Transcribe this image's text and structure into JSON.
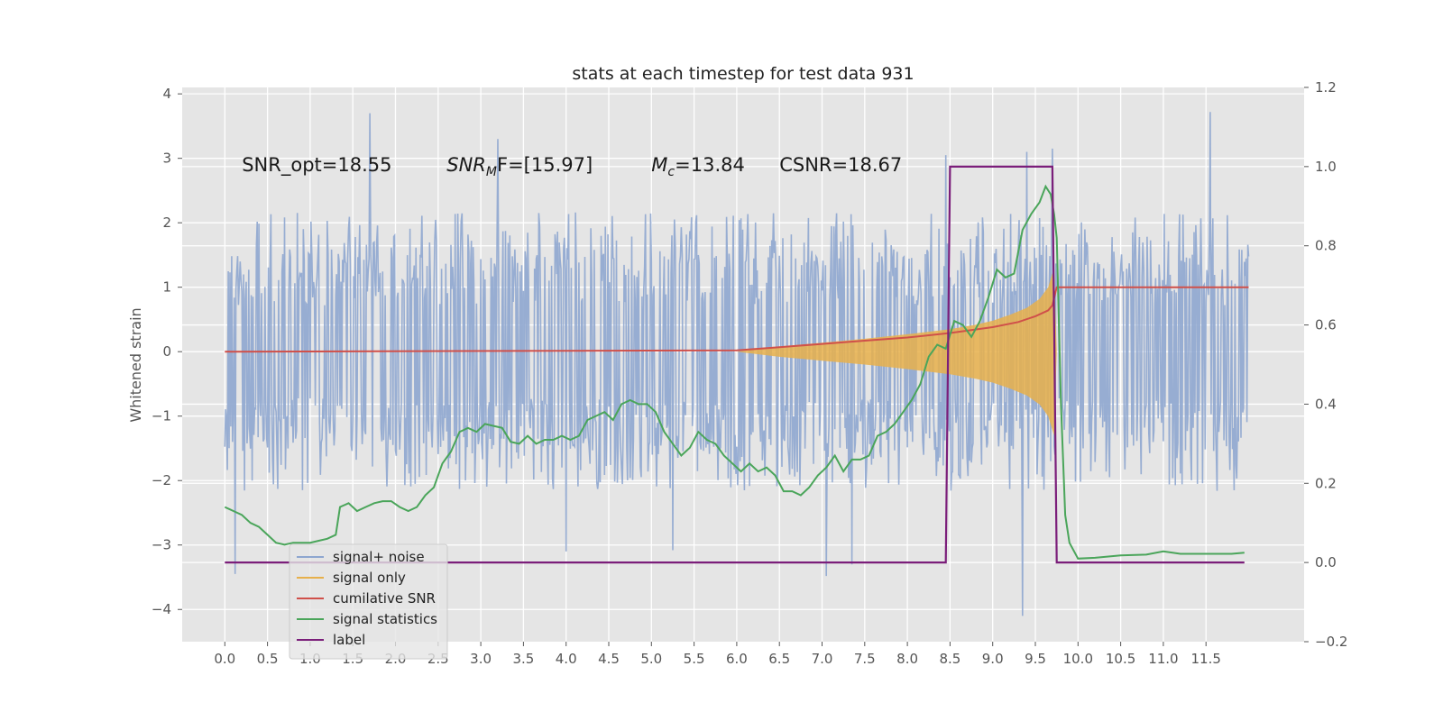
{
  "chart_data": {
    "type": "line",
    "title": "stats at each timestep for test data 931",
    "ylabel": "Whitened strain",
    "y2label": "",
    "xlim": [
      -0.5,
      12.65
    ],
    "ylim": [
      -4.5,
      4.1
    ],
    "y2lim": [
      -0.2,
      1.2
    ],
    "x_ticks": [
      0.0,
      0.5,
      1.0,
      1.5,
      2.0,
      2.5,
      3.0,
      3.5,
      4.0,
      4.5,
      5.0,
      5.5,
      6.0,
      6.5,
      7.0,
      7.5,
      8.0,
      8.5,
      9.0,
      9.5,
      10.0,
      10.5,
      11.0,
      11.5
    ],
    "x_tick_labels": [
      "0.0",
      "0.5",
      "1.0",
      "1.5",
      "2.0",
      "2.5",
      "3.0",
      "3.5",
      "4.0",
      "4.5",
      "5.0",
      "5.5",
      "6.0",
      "6.5",
      "7.0",
      "7.5",
      "8.0",
      "8.5",
      "9.0",
      "9.5",
      "10.0",
      "10.5",
      "11.0",
      "11.5"
    ],
    "y_ticks": [
      4,
      3,
      2,
      1,
      0,
      -1,
      -2,
      -3,
      -4
    ],
    "y_tick_labels": [
      "4",
      "3",
      "2",
      "1",
      "0",
      "−1",
      "−2",
      "−3",
      "−4"
    ],
    "y2_ticks": [
      1.2,
      1.0,
      0.8,
      0.6,
      0.4,
      0.2,
      0.0,
      -0.2
    ],
    "y2_tick_labels": [
      "1.2",
      "1.0",
      "0.8",
      "0.6",
      "0.4",
      "0.2",
      "0.0",
      "−0.2"
    ],
    "grid": true,
    "legend_position": "lower-left",
    "annotations": [
      {
        "text": "SNR_opt=18.55",
        "x": 0.2,
        "y": 2.9
      },
      {
        "text": "SNR_MF=[15.97]",
        "x": 2.6,
        "y": 2.9,
        "math_main": "SNR",
        "math_sub": "M",
        "math_rest": "F=[15.97]"
      },
      {
        "text": "M_c=13.84",
        "x": 5.0,
        "y": 2.9,
        "math_main": "M",
        "math_sub": "c",
        "math_rest": "=13.84"
      },
      {
        "text": "CSNR=18.67",
        "x": 6.5,
        "y": 2.9
      }
    ],
    "series": [
      {
        "name": "signal+ noise",
        "color": "#8ea6cf",
        "axis": "left",
        "style": "noise",
        "x_range": [
          0.0,
          12.0
        ],
        "typical_range": [
          -1.6,
          1.6
        ],
        "peaks": [
          {
            "x": 1.7,
            "y": 3.7
          },
          {
            "x": 11.55,
            "y": 3.72
          },
          {
            "x": 9.7,
            "y": 3.15
          },
          {
            "x": 9.4,
            "y": 3.1
          },
          {
            "x": 8.45,
            "y": 3.05
          },
          {
            "x": 3.2,
            "y": 3.3
          },
          {
            "x": 0.12,
            "y": -3.45
          },
          {
            "x": 9.35,
            "y": -4.1
          },
          {
            "x": 7.05,
            "y": -3.48
          },
          {
            "x": 7.35,
            "y": -3.3
          },
          {
            "x": 4.0,
            "y": -3.1
          },
          {
            "x": 5.25,
            "y": -3.08
          }
        ]
      },
      {
        "name": "signal only",
        "color": "#e7b04b",
        "axis": "left",
        "style": "envelope",
        "x": [
          6.0,
          6.5,
          7.0,
          7.5,
          8.0,
          8.5,
          8.8,
          9.0,
          9.2,
          9.4,
          9.55,
          9.65,
          9.72,
          9.75
        ],
        "upper": [
          0.0,
          0.08,
          0.14,
          0.2,
          0.27,
          0.35,
          0.42,
          0.48,
          0.57,
          0.68,
          0.82,
          1.0,
          1.3,
          0.0
        ],
        "lower": [
          0.0,
          -0.08,
          -0.14,
          -0.2,
          -0.27,
          -0.35,
          -0.42,
          -0.48,
          -0.57,
          -0.68,
          -0.82,
          -1.0,
          -1.3,
          0.0
        ]
      },
      {
        "name": "cumilative SNR",
        "color": "#d0504a",
        "axis": "left",
        "x": [
          0.0,
          6.0,
          6.5,
          7.0,
          7.5,
          8.0,
          8.5,
          9.0,
          9.3,
          9.5,
          9.65,
          9.7,
          9.75,
          12.0
        ],
        "values": [
          0.0,
          0.02,
          0.07,
          0.12,
          0.17,
          0.22,
          0.29,
          0.38,
          0.46,
          0.55,
          0.64,
          0.72,
          1.0,
          1.0
        ]
      },
      {
        "name": "signal statistics",
        "color": "#4aa55a",
        "axis": "right",
        "x": [
          0.0,
          0.1,
          0.2,
          0.3,
          0.4,
          0.5,
          0.6,
          0.7,
          0.8,
          0.9,
          1.0,
          1.1,
          1.2,
          1.3,
          1.35,
          1.45,
          1.55,
          1.65,
          1.75,
          1.85,
          1.95,
          2.05,
          2.15,
          2.25,
          2.35,
          2.45,
          2.55,
          2.65,
          2.75,
          2.85,
          2.95,
          3.05,
          3.15,
          3.25,
          3.35,
          3.45,
          3.55,
          3.65,
          3.75,
          3.85,
          3.95,
          4.05,
          4.15,
          4.25,
          4.35,
          4.45,
          4.55,
          4.65,
          4.75,
          4.85,
          4.95,
          5.05,
          5.15,
          5.25,
          5.35,
          5.45,
          5.55,
          5.65,
          5.75,
          5.85,
          5.95,
          6.05,
          6.15,
          6.25,
          6.35,
          6.45,
          6.55,
          6.65,
          6.75,
          6.85,
          6.95,
          7.05,
          7.15,
          7.25,
          7.35,
          7.45,
          7.55,
          7.65,
          7.75,
          7.85,
          7.95,
          8.05,
          8.15,
          8.25,
          8.35,
          8.45,
          8.55,
          8.65,
          8.75,
          8.85,
          8.95,
          9.05,
          9.15,
          9.25,
          9.35,
          9.45,
          9.55,
          9.62,
          9.68,
          9.72,
          9.75,
          9.8,
          9.85,
          9.9,
          10.0,
          10.2,
          10.5,
          10.8,
          11.0,
          11.2,
          11.5,
          11.8,
          11.95
        ],
        "values": [
          0.14,
          0.13,
          0.12,
          0.1,
          0.09,
          0.07,
          0.05,
          0.045,
          0.05,
          0.05,
          0.05,
          0.055,
          0.06,
          0.07,
          0.14,
          0.15,
          0.13,
          0.14,
          0.15,
          0.155,
          0.155,
          0.14,
          0.13,
          0.14,
          0.17,
          0.19,
          0.25,
          0.28,
          0.33,
          0.34,
          0.33,
          0.35,
          0.345,
          0.34,
          0.305,
          0.3,
          0.32,
          0.3,
          0.31,
          0.31,
          0.32,
          0.31,
          0.32,
          0.36,
          0.37,
          0.38,
          0.36,
          0.4,
          0.41,
          0.4,
          0.4,
          0.38,
          0.33,
          0.3,
          0.27,
          0.29,
          0.33,
          0.31,
          0.3,
          0.27,
          0.25,
          0.23,
          0.25,
          0.23,
          0.24,
          0.22,
          0.18,
          0.18,
          0.17,
          0.19,
          0.22,
          0.24,
          0.27,
          0.23,
          0.26,
          0.26,
          0.27,
          0.32,
          0.33,
          0.35,
          0.38,
          0.41,
          0.45,
          0.52,
          0.55,
          0.54,
          0.61,
          0.6,
          0.57,
          0.61,
          0.67,
          0.74,
          0.72,
          0.73,
          0.84,
          0.88,
          0.91,
          0.95,
          0.93,
          0.88,
          0.82,
          0.4,
          0.12,
          0.05,
          0.01,
          0.012,
          0.018,
          0.02,
          0.028,
          0.022,
          0.022,
          0.022,
          0.025
        ]
      },
      {
        "name": "label",
        "color": "#7b1e7a",
        "axis": "right",
        "x": [
          0.0,
          8.45,
          8.5,
          9.7,
          9.75,
          11.95
        ],
        "values": [
          0.0,
          0.0,
          1.0,
          1.0,
          0.0,
          0.0
        ]
      }
    ]
  }
}
